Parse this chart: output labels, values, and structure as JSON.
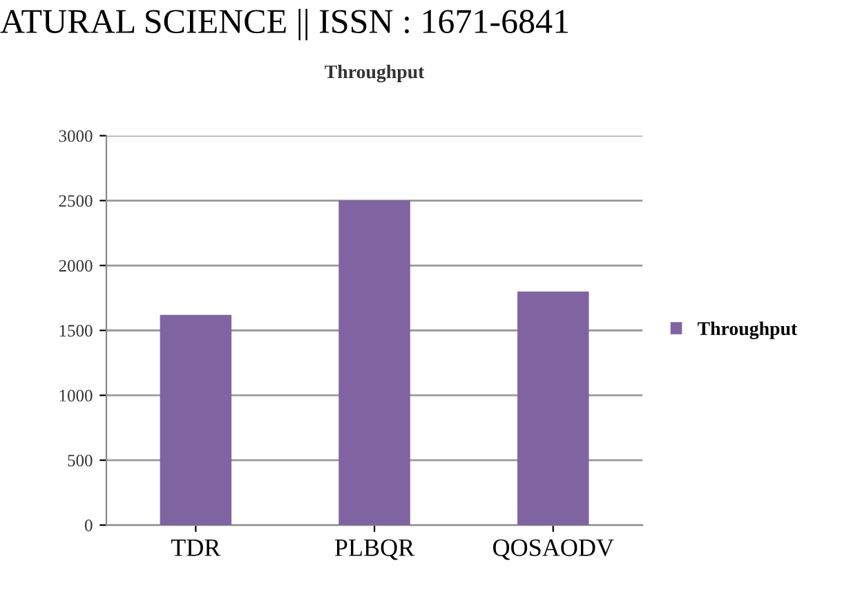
{
  "chart_data": {
    "type": "bar",
    "title": "Throughput",
    "annotations": [
      "ATURAL SCIENCE || ISSN : 1671-6841"
    ],
    "categories": [
      "TDR",
      "PLBQR",
      "QOSAODV"
    ],
    "series": [
      {
        "name": "Throughput",
        "color": "#8064a2",
        "values": [
          1620,
          2500,
          1800
        ]
      }
    ],
    "ylim": [
      0,
      3000
    ],
    "yticks": [
      0,
      500,
      1000,
      1500,
      2000,
      2500,
      3000
    ],
    "grid": "y",
    "legend": "right"
  }
}
